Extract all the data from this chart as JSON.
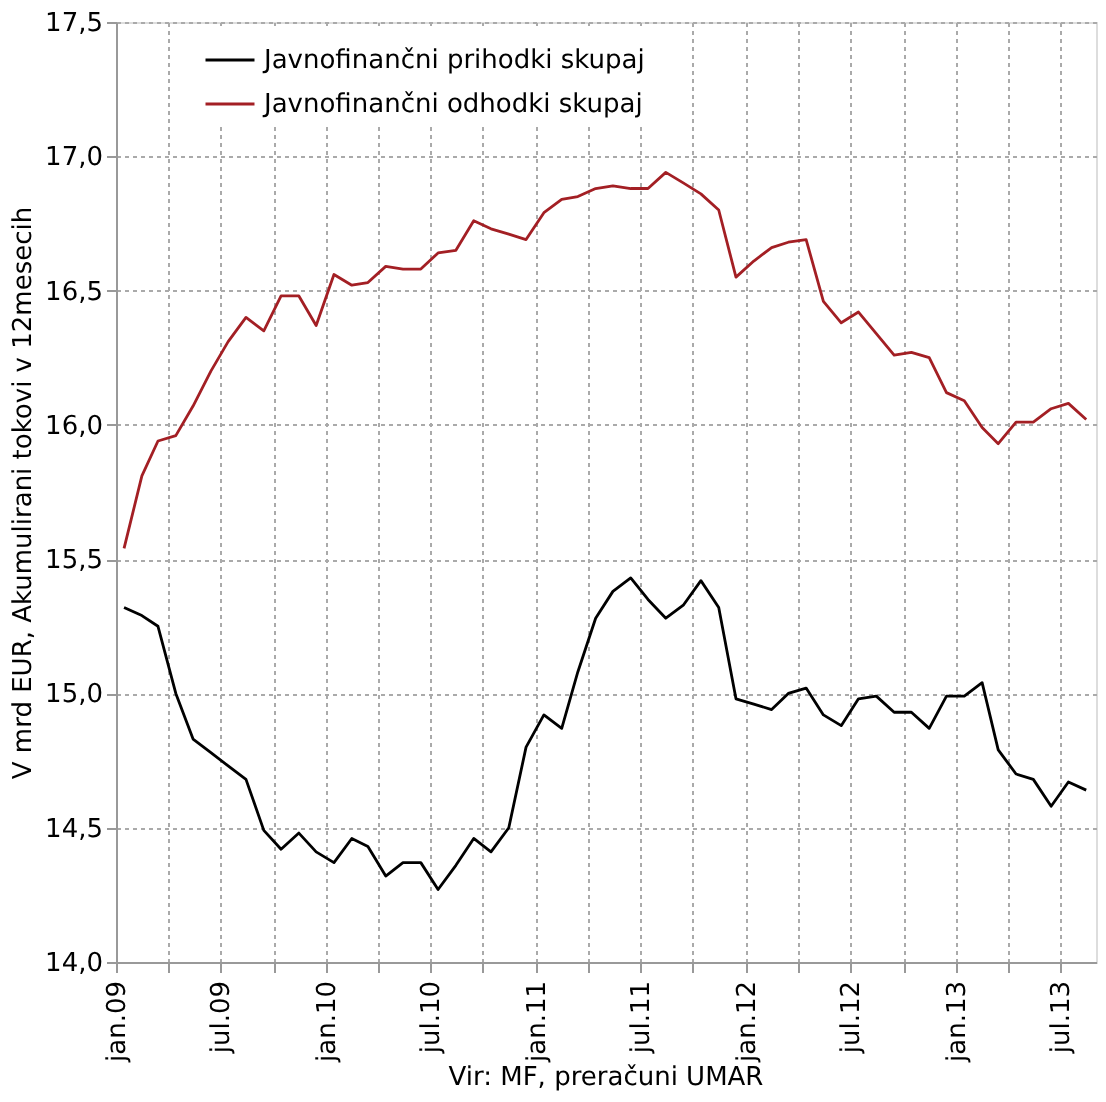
{
  "chart_data": {
    "type": "line",
    "ylabel": "V mrd EUR, Akumulirani tokovi v 12mesecih",
    "annotations": [
      "Vir: MF, preračuni UMAR"
    ],
    "x": [
      "2009-01-15",
      "2009-02-15",
      "2009-03-15",
      "2009-04-15",
      "2009-05-15",
      "2009-06-15",
      "2009-07-15",
      "2009-08-15",
      "2009-09-15",
      "2009-10-15",
      "2009-11-15",
      "2009-12-15",
      "2010-01-15",
      "2010-02-15",
      "2010-03-15",
      "2010-04-15",
      "2010-05-15",
      "2010-06-15",
      "2010-07-15",
      "2010-08-15",
      "2010-09-15",
      "2010-10-15",
      "2010-11-15",
      "2010-12-15",
      "2011-01-15",
      "2011-02-15",
      "2011-03-15",
      "2011-04-15",
      "2011-05-15",
      "2011-06-15",
      "2011-07-15",
      "2011-08-15",
      "2011-09-15",
      "2011-10-15",
      "2011-11-15",
      "2011-12-15",
      "2012-01-15",
      "2012-02-15",
      "2012-03-15",
      "2012-04-15",
      "2012-05-15",
      "2012-06-15",
      "2012-07-15",
      "2012-08-15",
      "2012-09-15",
      "2012-10-15",
      "2012-11-15",
      "2012-12-15",
      "2013-01-15",
      "2013-02-15",
      "2013-03-15",
      "2013-04-15",
      "2013-05-15",
      "2013-06-15",
      "2013-07-15",
      "2013-08-15"
    ],
    "series": [
      {
        "name": "Javnofinančni prihodki skupaj",
        "color": "#000000",
        "values": [
          15.32,
          15.29,
          15.25,
          15.0,
          14.83,
          14.78,
          14.73,
          14.68,
          14.49,
          14.42,
          14.48,
          14.41,
          14.37,
          14.46,
          14.43,
          14.32,
          14.37,
          14.37,
          14.27,
          14.36,
          14.46,
          14.41,
          14.5,
          14.8,
          14.92,
          14.87,
          15.08,
          15.28,
          15.38,
          15.43,
          15.35,
          15.28,
          15.33,
          15.42,
          15.32,
          14.98,
          14.96,
          14.94,
          15.0,
          15.02,
          14.92,
          14.88,
          14.98,
          14.99,
          14.93,
          14.93,
          14.87,
          14.99,
          14.99,
          15.04,
          14.79,
          14.7,
          14.68,
          14.58,
          14.67,
          14.64
        ]
      },
      {
        "name": "Javnofinančni odhodki skupaj",
        "color": "#a31f24",
        "values": [
          15.54,
          15.81,
          15.94,
          15.96,
          16.07,
          16.2,
          16.31,
          16.4,
          16.35,
          16.48,
          16.48,
          16.37,
          16.56,
          16.52,
          16.53,
          16.59,
          16.58,
          16.58,
          16.64,
          16.65,
          16.76,
          16.73,
          16.71,
          16.69,
          16.79,
          16.84,
          16.85,
          16.88,
          16.89,
          16.88,
          16.88,
          16.94,
          16.9,
          16.86,
          16.8,
          16.55,
          16.61,
          16.66,
          16.68,
          16.69,
          16.46,
          16.38,
          16.42,
          16.34,
          16.26,
          16.27,
          16.25,
          16.12,
          16.09,
          15.99,
          15.93,
          16.01,
          16.01,
          16.06,
          16.08,
          16.02
        ]
      }
    ],
    "xlim": [
      "2009-01-01",
      "2013-09-01"
    ],
    "xticks": [
      {
        "value": "2009-01-01",
        "label": "jan.09"
      },
      {
        "value": "2009-04-01",
        "label": null
      },
      {
        "value": "2009-07-01",
        "label": "jul.09"
      },
      {
        "value": "2009-10-01",
        "label": null
      },
      {
        "value": "2010-01-01",
        "label": "jan.10"
      },
      {
        "value": "2010-04-01",
        "label": null
      },
      {
        "value": "2010-07-01",
        "label": "jul.10"
      },
      {
        "value": "2010-10-01",
        "label": null
      },
      {
        "value": "2011-01-01",
        "label": "jan.11"
      },
      {
        "value": "2011-04-01",
        "label": null
      },
      {
        "value": "2011-07-01",
        "label": "jul.11"
      },
      {
        "value": "2011-10-01",
        "label": null
      },
      {
        "value": "2012-01-01",
        "label": "jan.12"
      },
      {
        "value": "2012-04-01",
        "label": null
      },
      {
        "value": "2012-07-01",
        "label": "jul.12"
      },
      {
        "value": "2012-10-01",
        "label": null
      },
      {
        "value": "2013-01-01",
        "label": "jan.13"
      },
      {
        "value": "2013-04-01",
        "label": null
      },
      {
        "value": "2013-07-01",
        "label": "jul.13"
      }
    ],
    "ylim": [
      14.0,
      17.5
    ],
    "yticks": [
      {
        "value": 14.0,
        "label": "14,0"
      },
      {
        "value": 14.5,
        "label": "14,5"
      },
      {
        "value": 15.0,
        "label": "15,0"
      },
      {
        "value": 15.5,
        "label": "15,5"
      },
      {
        "value": 16.0,
        "label": "16,0"
      },
      {
        "value": 16.5,
        "label": "16,5"
      },
      {
        "value": 17.0,
        "label": "17,0"
      },
      {
        "value": 17.5,
        "label": "17,5"
      }
    ],
    "grid": true,
    "legend": "top left",
    "marker": "none",
    "line_style": "solid"
  }
}
